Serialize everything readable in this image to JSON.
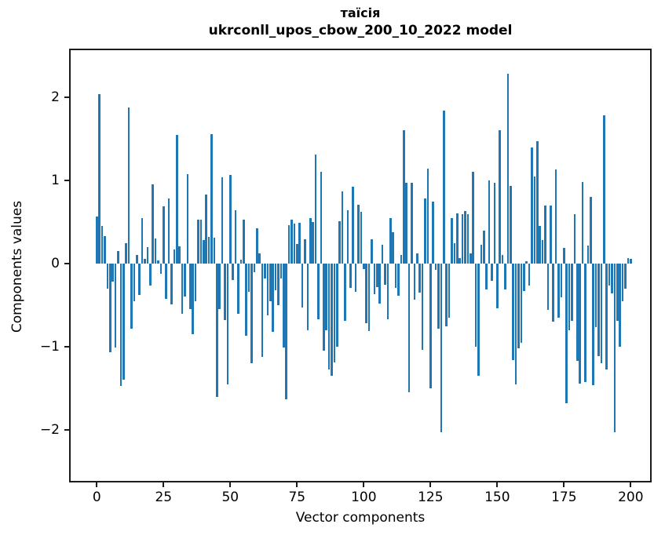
{
  "title": {
    "line1": "таїсія",
    "line2": "ukrconll_upos_cbow_200_10_2022 model"
  },
  "axes": {
    "xlabel": "Vector components",
    "ylabel": "Components values",
    "x_ticks": [
      0,
      25,
      50,
      75,
      100,
      125,
      150,
      175,
      200
    ],
    "y_ticks": [
      2,
      1,
      0,
      -1,
      -2
    ]
  },
  "colors": {
    "bar": "#1f77b4",
    "spine": "#1c1c1c",
    "background": "#ffffff"
  },
  "chart_data": {
    "type": "bar",
    "title": "таїсія — ukrconll_upos_cbow_200_10_2022 model",
    "xlabel": "Vector components",
    "ylabel": "Components values",
    "x_range": [
      0,
      200
    ],
    "xlim": [
      -10.4,
      207.9
    ],
    "ylim": [
      -2.63,
      2.58
    ],
    "grid": false,
    "legend": "none",
    "values": [
      0.57,
      2.04,
      0.45,
      0.33,
      -0.3,
      -1.07,
      -0.22,
      -1.01,
      0.15,
      -1.47,
      -1.4,
      0.25,
      1.88,
      -0.78,
      -0.45,
      0.1,
      -0.38,
      0.55,
      0.06,
      0.2,
      -0.26,
      0.95,
      0.3,
      0.04,
      -0.12,
      0.69,
      -0.42,
      0.78,
      -0.49,
      0.17,
      1.55,
      0.21,
      -0.6,
      -0.4,
      1.08,
      -0.55,
      -0.85,
      -0.45,
      0.53,
      0.53,
      0.28,
      0.83,
      0.32,
      1.56,
      0.31,
      -1.6,
      -0.55,
      1.04,
      -0.68,
      -1.45,
      1.07,
      -0.2,
      0.64,
      -0.6,
      0.05,
      0.53,
      -0.87,
      -0.34,
      -1.2,
      -0.1,
      0.42,
      0.12,
      -1.12,
      -0.18,
      -0.62,
      -0.45,
      -0.82,
      -0.32,
      -0.5,
      -0.18,
      -1.01,
      -1.63,
      0.46,
      0.53,
      0.48,
      0.24,
      0.49,
      -0.53,
      0.29,
      -0.8,
      0.55,
      0.5,
      1.31,
      -0.67,
      1.1,
      -1.05,
      -0.8,
      -1.27,
      -1.35,
      -1.19,
      -1.0,
      0.51,
      0.87,
      -0.69,
      0.64,
      -0.29,
      0.92,
      -0.34,
      0.71,
      0.62,
      -0.07,
      -0.72,
      -0.81,
      0.29,
      -0.37,
      -0.28,
      -0.48,
      0.23,
      -0.25,
      -0.67,
      0.55,
      0.38,
      -0.29,
      -0.39,
      0.1,
      1.6,
      0.97,
      -1.55,
      0.97,
      -0.43,
      0.12,
      -0.35,
      -1.04,
      0.78,
      1.14,
      -1.5,
      0.75,
      -0.08,
      -0.78,
      -2.03,
      1.84,
      -0.75,
      -0.65,
      0.55,
      0.25,
      0.6,
      0.07,
      0.59,
      0.63,
      0.59,
      0.12,
      1.1,
      -1.0,
      -1.35,
      0.23,
      0.4,
      -0.31,
      1.0,
      -0.21,
      0.97,
      -0.54,
      1.6,
      0.1,
      -0.31,
      2.28,
      0.93,
      -1.16,
      -1.45,
      -1.02,
      -0.95,
      -0.33,
      0.03,
      -0.26,
      1.4,
      1.05,
      1.47,
      0.45,
      0.28,
      0.7,
      -0.56,
      0.7,
      -0.7,
      1.13,
      -0.65,
      -0.41,
      0.19,
      -1.68,
      -0.8,
      -0.69,
      0.59,
      -1.17,
      -1.44,
      0.98,
      -1.42,
      0.22,
      0.8,
      -1.46,
      -0.76,
      -1.11,
      -1.2,
      1.78,
      -1.27,
      -0.26,
      -0.36,
      -2.03,
      -0.69,
      -1.0,
      -0.45,
      -0.3,
      0.07,
      0.06
    ]
  }
}
